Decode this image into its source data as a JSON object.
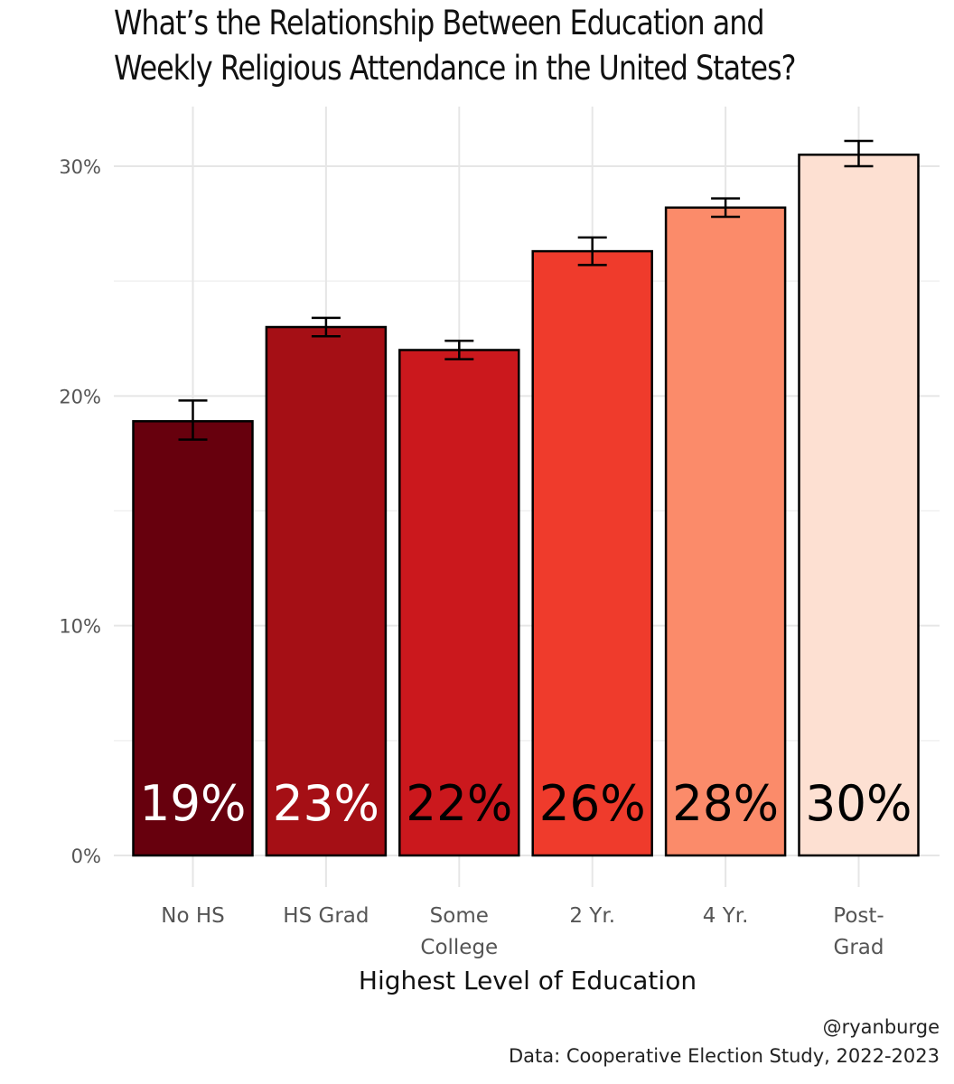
{
  "chart_data": {
    "type": "bar",
    "title_lines": [
      "What’s the Relationship Between Education and",
      "Weekly Religious Attendance in the United States?"
    ],
    "xlabel": "Highest Level of Education",
    "ylabel": "",
    "ylim": [
      0,
      0.32
    ],
    "y_ticks": [
      0,
      0.1,
      0.2,
      0.3
    ],
    "y_tick_labels": [
      "0%",
      "10%",
      "20%",
      "30%"
    ],
    "grid": true,
    "categories": [
      [
        "No HS"
      ],
      [
        "HS Grad"
      ],
      [
        "Some",
        "College"
      ],
      [
        "2 Yr."
      ],
      [
        "4 Yr."
      ],
      [
        "Post-",
        "Grad"
      ]
    ],
    "values": [
      0.189,
      0.23,
      0.22,
      0.263,
      0.282,
      0.305
    ],
    "error_low": [
      0.181,
      0.226,
      0.216,
      0.257,
      0.278,
      0.3
    ],
    "error_high": [
      0.198,
      0.234,
      0.224,
      0.269,
      0.286,
      0.311
    ],
    "data_labels": [
      "19%",
      "23%",
      "22%",
      "26%",
      "28%",
      "30%"
    ],
    "colors": [
      "#67000d",
      "#a50f15",
      "#cb181d",
      "#ef3b2c",
      "#fb8b6a",
      "#fde0d2"
    ],
    "label_colors": [
      "#ffffff",
      "#ffffff",
      "#000000",
      "#000000",
      "#000000",
      "#000000"
    ],
    "caption_lines": [
      "@ryanburge",
      "Data: Cooperative Election Study, 2022-2023"
    ]
  }
}
